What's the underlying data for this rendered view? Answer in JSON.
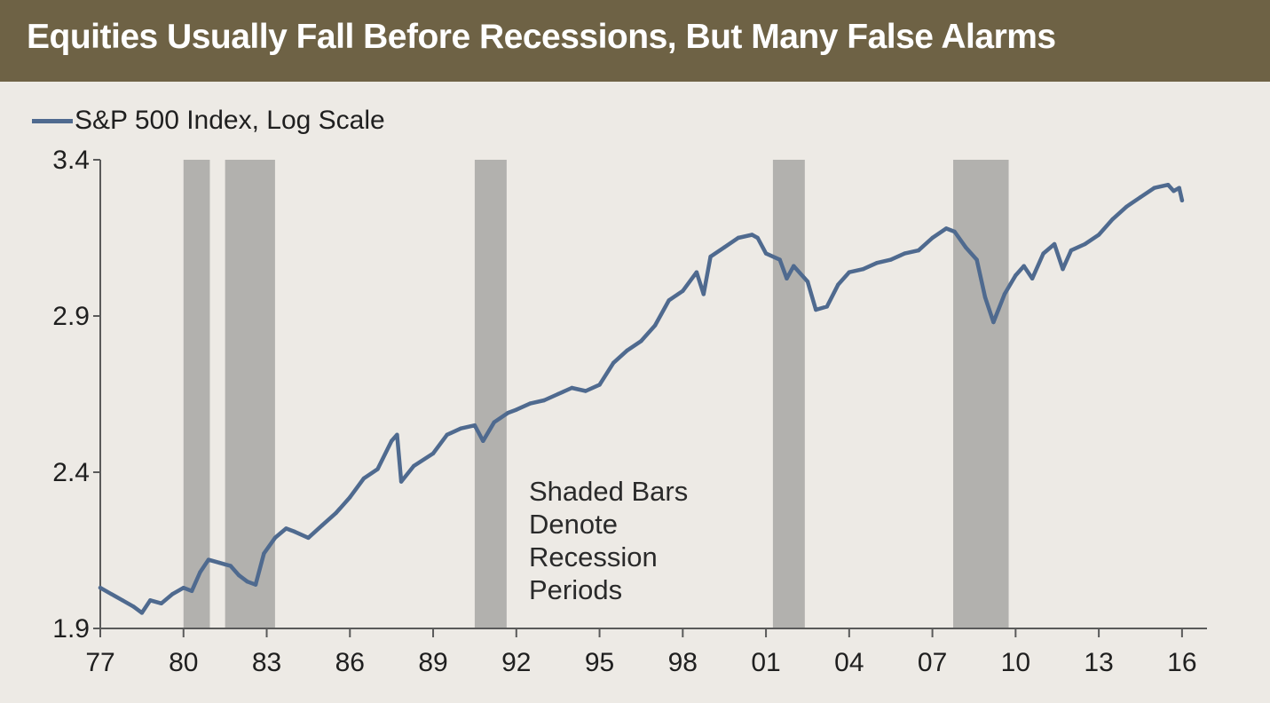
{
  "chart_data": {
    "type": "line",
    "title": "Equities Usually Fall Before Recessions, But Many False Alarms",
    "series": [
      {
        "name": "S&P 500 Index, Log Scale",
        "color": "#4f6a8f",
        "points": [
          [
            1977.0,
            2.03
          ],
          [
            1977.4,
            2.01
          ],
          [
            1977.8,
            1.99
          ],
          [
            1978.2,
            1.97
          ],
          [
            1978.5,
            1.95
          ],
          [
            1978.8,
            1.99
          ],
          [
            1979.2,
            1.98
          ],
          [
            1979.6,
            2.01
          ],
          [
            1980.0,
            2.03
          ],
          [
            1980.3,
            2.02
          ],
          [
            1980.6,
            2.08
          ],
          [
            1980.9,
            2.12
          ],
          [
            1981.3,
            2.11
          ],
          [
            1981.7,
            2.1
          ],
          [
            1982.0,
            2.07
          ],
          [
            1982.3,
            2.05
          ],
          [
            1982.6,
            2.04
          ],
          [
            1982.9,
            2.14
          ],
          [
            1983.3,
            2.19
          ],
          [
            1983.7,
            2.22
          ],
          [
            1984.0,
            2.21
          ],
          [
            1984.5,
            2.19
          ],
          [
            1985.0,
            2.23
          ],
          [
            1985.5,
            2.27
          ],
          [
            1986.0,
            2.32
          ],
          [
            1986.5,
            2.38
          ],
          [
            1987.0,
            2.41
          ],
          [
            1987.5,
            2.5
          ],
          [
            1987.7,
            2.52
          ],
          [
            1987.85,
            2.37
          ],
          [
            1988.3,
            2.42
          ],
          [
            1989.0,
            2.46
          ],
          [
            1989.5,
            2.52
          ],
          [
            1990.0,
            2.54
          ],
          [
            1990.5,
            2.55
          ],
          [
            1990.8,
            2.5
          ],
          [
            1991.2,
            2.56
          ],
          [
            1991.7,
            2.59
          ],
          [
            1992.0,
            2.6
          ],
          [
            1992.5,
            2.62
          ],
          [
            1993.0,
            2.63
          ],
          [
            1993.5,
            2.65
          ],
          [
            1994.0,
            2.67
          ],
          [
            1994.5,
            2.66
          ],
          [
            1995.0,
            2.68
          ],
          [
            1995.5,
            2.75
          ],
          [
            1996.0,
            2.79
          ],
          [
            1996.5,
            2.82
          ],
          [
            1997.0,
            2.87
          ],
          [
            1997.5,
            2.95
          ],
          [
            1998.0,
            2.98
          ],
          [
            1998.5,
            3.04
          ],
          [
            1998.75,
            2.97
          ],
          [
            1999.0,
            3.09
          ],
          [
            1999.5,
            3.12
          ],
          [
            2000.0,
            3.15
          ],
          [
            2000.5,
            3.16
          ],
          [
            2000.7,
            3.15
          ],
          [
            2001.0,
            3.1
          ],
          [
            2001.5,
            3.08
          ],
          [
            2001.75,
            3.02
          ],
          [
            2002.0,
            3.06
          ],
          [
            2002.5,
            3.01
          ],
          [
            2002.8,
            2.92
          ],
          [
            2003.2,
            2.93
          ],
          [
            2003.6,
            3.0
          ],
          [
            2004.0,
            3.04
          ],
          [
            2004.5,
            3.05
          ],
          [
            2005.0,
            3.07
          ],
          [
            2005.5,
            3.08
          ],
          [
            2006.0,
            3.1
          ],
          [
            2006.5,
            3.11
          ],
          [
            2007.0,
            3.15
          ],
          [
            2007.5,
            3.18
          ],
          [
            2007.8,
            3.17
          ],
          [
            2008.2,
            3.12
          ],
          [
            2008.6,
            3.08
          ],
          [
            2008.9,
            2.96
          ],
          [
            2009.2,
            2.88
          ],
          [
            2009.6,
            2.97
          ],
          [
            2010.0,
            3.03
          ],
          [
            2010.3,
            3.06
          ],
          [
            2010.6,
            3.02
          ],
          [
            2011.0,
            3.1
          ],
          [
            2011.4,
            3.13
          ],
          [
            2011.7,
            3.05
          ],
          [
            2012.0,
            3.11
          ],
          [
            2012.5,
            3.13
          ],
          [
            2013.0,
            3.16
          ],
          [
            2013.5,
            3.21
          ],
          [
            2014.0,
            3.25
          ],
          [
            2014.5,
            3.28
          ],
          [
            2015.0,
            3.31
          ],
          [
            2015.5,
            3.32
          ],
          [
            2015.7,
            3.3
          ],
          [
            2015.9,
            3.31
          ],
          [
            2016.0,
            3.27
          ]
        ]
      }
    ],
    "recessions": [
      [
        1980.0,
        1980.95
      ],
      [
        1981.5,
        1983.3
      ],
      [
        1990.5,
        1991.65
      ],
      [
        2001.25,
        2002.4
      ],
      [
        2007.75,
        2009.75
      ]
    ],
    "recession_color": "#b2b1ae",
    "x_ticks": [
      "77",
      "80",
      "83",
      "86",
      "89",
      "92",
      "95",
      "98",
      "01",
      "04",
      "07",
      "10",
      "13",
      "16"
    ],
    "x_tick_values": [
      1977,
      1980,
      1983,
      1986,
      1989,
      1992,
      1995,
      1998,
      2001,
      2004,
      2007,
      2010,
      2013,
      2016
    ],
    "y_ticks": [
      "1.9",
      "2.4",
      "2.9",
      "3.4"
    ],
    "y_tick_values": [
      1.9,
      2.4,
      2.9,
      3.4
    ],
    "xlim": [
      1977,
      2016.9
    ],
    "ylim": [
      1.9,
      3.4
    ],
    "xlabel": "",
    "ylabel": "",
    "annotation": [
      "Shaded Bars",
      "Denote",
      "Recession",
      "Periods"
    ],
    "grid": false,
    "legend_position": "top-left"
  }
}
